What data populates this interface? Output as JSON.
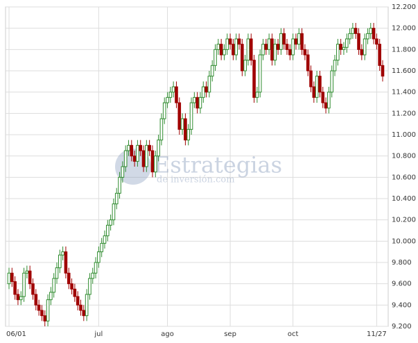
{
  "chart_data": {
    "type": "candlestick",
    "watermark": {
      "title": "Estrategias",
      "subtitle": "de inversión.com"
    },
    "categories": [
      "06/01",
      null,
      null,
      null,
      null,
      null,
      null,
      null,
      null,
      null,
      null,
      null,
      null,
      null,
      null,
      null,
      null,
      null,
      null,
      null,
      null,
      null,
      null,
      null,
      null,
      null,
      null,
      null,
      null,
      null,
      "jul",
      null,
      null,
      null,
      null,
      null,
      null,
      null,
      null,
      null,
      null,
      null,
      null,
      null,
      null,
      null,
      null,
      null,
      null,
      null,
      null,
      null,
      null,
      "ago",
      null,
      null,
      null,
      null,
      null,
      null,
      null,
      null,
      null,
      null,
      null,
      null,
      null,
      null,
      null,
      null,
      null,
      null,
      null,
      null,
      "sep",
      null,
      null,
      null,
      null,
      null,
      null,
      null,
      null,
      null,
      null,
      null,
      null,
      null,
      null,
      null,
      null,
      null,
      null,
      null,
      null,
      "oct",
      null,
      null,
      null,
      null,
      null,
      null,
      null,
      null,
      null,
      null,
      null,
      null,
      null,
      null,
      null,
      null,
      null,
      null,
      null,
      null,
      null,
      null,
      null,
      null,
      null,
      null,
      null,
      "11/27",
      null,
      null
    ],
    "open": [
      9600,
      9700,
      9620,
      9500,
      9450,
      9480,
      9700,
      9720,
      9600,
      9500,
      9400,
      9350,
      9300,
      9250,
      9450,
      9520,
      9650,
      9750,
      9870,
      9900,
      9700,
      9600,
      9550,
      9480,
      9400,
      9350,
      9300,
      9500,
      9650,
      9700,
      9800,
      9900,
      9980,
      10050,
      10150,
      10200,
      10350,
      10450,
      10600,
      10700,
      10850,
      10900,
      10800,
      10750,
      10900,
      10850,
      10700,
      10900,
      10850,
      10650,
      10800,
      10950,
      11150,
      11300,
      11350,
      11400,
      11450,
      11300,
      11050,
      11150,
      10950,
      11050,
      11300,
      11350,
      11250,
      11350,
      11450,
      11400,
      11550,
      11650,
      11800,
      11850,
      11750,
      11800,
      11900,
      11850,
      11750,
      11900,
      11850,
      11600,
      11700,
      11900,
      11700,
      11350,
      11400,
      11750,
      11850,
      11800,
      11900,
      11700,
      11850,
      11800,
      11950,
      11850,
      11800,
      11750,
      11900,
      11850,
      11950,
      11800,
      11750,
      11600,
      11450,
      11350,
      11550,
      11400,
      11300,
      11250,
      11400,
      11600,
      11700,
      11850,
      11800,
      11820,
      11900,
      11950,
      12000,
      11950,
      11800,
      11750,
      11900,
      11950,
      12000,
      11900,
      11850,
      11650
    ],
    "high": [
      9750,
      9750,
      9670,
      9550,
      9530,
      9750,
      9770,
      9770,
      9650,
      9550,
      9450,
      9400,
      9350,
      9500,
      9570,
      9700,
      9800,
      9920,
      9950,
      9950,
      9750,
      9650,
      9600,
      9530,
      9450,
      9400,
      9550,
      9700,
      9750,
      9850,
      9950,
      10030,
      10100,
      10200,
      10250,
      10400,
      10500,
      10650,
      10750,
      10900,
      10950,
      10950,
      10850,
      10950,
      10950,
      10900,
      10950,
      10950,
      10900,
      10850,
      11000,
      11200,
      11350,
      11400,
      11450,
      11500,
      11500,
      11350,
      11200,
      11200,
      11100,
      11350,
      11400,
      11400,
      11400,
      11500,
      11500,
      11600,
      11700,
      11850,
      11900,
      11900,
      11850,
      11950,
      11950,
      11900,
      11950,
      11950,
      11900,
      11750,
      11950,
      11950,
      11750,
      11450,
      11800,
      11900,
      11900,
      11950,
      11950,
      11900,
      11900,
      12000,
      12000,
      11900,
      11850,
      11950,
      11950,
      12000,
      12000,
      11850,
      11800,
      11650,
      11500,
      11600,
      11600,
      11450,
      11350,
      11450,
      11650,
      11750,
      11900,
      11900,
      11870,
      11950,
      12000,
      12050,
      12050,
      12000,
      11850,
      11950,
      12000,
      12050,
      12050,
      11950,
      11900,
      11700
    ],
    "low": [
      9550,
      9570,
      9450,
      9400,
      9400,
      9430,
      9650,
      9550,
      9450,
      9350,
      9300,
      9250,
      9200,
      9200,
      9400,
      9470,
      9600,
      9700,
      9820,
      9650,
      9550,
      9500,
      9430,
      9350,
      9300,
      9250,
      9250,
      9450,
      9600,
      9650,
      9750,
      9850,
      9930,
      10000,
      10100,
      10150,
      10300,
      10400,
      10550,
      10650,
      10800,
      10750,
      10700,
      10700,
      10800,
      10650,
      10650,
      10800,
      10600,
      10600,
      10750,
      10900,
      11100,
      11250,
      11300,
      11350,
      11250,
      11000,
      11000,
      10900,
      10900,
      11000,
      11250,
      11200,
      11200,
      11300,
      11350,
      11350,
      11500,
      11600,
      11750,
      11700,
      11700,
      11750,
      11800,
      11700,
      11700,
      11800,
      11550,
      11550,
      11650,
      11650,
      11300,
      11300,
      11350,
      11700,
      11750,
      11750,
      11650,
      11650,
      11750,
      11750,
      11800,
      11750,
      11700,
      11700,
      11800,
      11800,
      11750,
      11700,
      11550,
      11400,
      11300,
      11300,
      11350,
      11250,
      11200,
      11200,
      11350,
      11550,
      11650,
      11750,
      11750,
      11770,
      11850,
      11900,
      11900,
      11750,
      11700,
      11700,
      11850,
      11900,
      11850,
      11800,
      11600,
      11500
    ],
    "close": [
      9700,
      9620,
      9500,
      9450,
      9480,
      9700,
      9720,
      9600,
      9500,
      9400,
      9350,
      9300,
      9250,
      9450,
      9520,
      9650,
      9750,
      9870,
      9900,
      9700,
      9600,
      9550,
      9480,
      9400,
      9350,
      9300,
      9500,
      9650,
      9700,
      9800,
      9900,
      9980,
      10050,
      10150,
      10200,
      10350,
      10450,
      10600,
      10700,
      10850,
      10900,
      10800,
      10750,
      10900,
      10850,
      10700,
      10900,
      10850,
      10650,
      10800,
      10950,
      11150,
      11300,
      11350,
      11400,
      11450,
      11300,
      11050,
      11150,
      10950,
      11050,
      11300,
      11350,
      11250,
      11350,
      11450,
      11400,
      11550,
      11650,
      11800,
      11850,
      11750,
      11800,
      11900,
      11850,
      11750,
      11900,
      11850,
      11600,
      11700,
      11900,
      11700,
      11350,
      11400,
      11750,
      11850,
      11800,
      11900,
      11700,
      11850,
      11800,
      11950,
      11850,
      11800,
      11750,
      11900,
      11850,
      11950,
      11800,
      11750,
      11600,
      11450,
      11350,
      11550,
      11400,
      11300,
      11250,
      11400,
      11600,
      11700,
      11850,
      11800,
      11820,
      11900,
      11950,
      12000,
      11950,
      11800,
      11750,
      11900,
      11950,
      12000,
      11900,
      11850,
      11650,
      11550
    ],
    "up_color": "#2e8b2e",
    "down_color": "#a00000",
    "ylim": [
      9200,
      12200
    ],
    "yticks": [
      {
        "value": 9200,
        "label": "9.200"
      },
      {
        "value": 9400,
        "label": "9.400"
      },
      {
        "value": 9600,
        "label": "9.600"
      },
      {
        "value": 9800,
        "label": "9.800"
      },
      {
        "value": 10000,
        "label": "10.000"
      },
      {
        "value": 10200,
        "label": "10.200"
      },
      {
        "value": 10400,
        "label": "10.400"
      },
      {
        "value": 10600,
        "label": "10.600"
      },
      {
        "value": 10800,
        "label": "10.800"
      },
      {
        "value": 11000,
        "label": "11.000"
      },
      {
        "value": 11200,
        "label": "11.200"
      },
      {
        "value": 11400,
        "label": "11.400"
      },
      {
        "value": 11600,
        "label": "11.600"
      },
      {
        "value": 11800,
        "label": "11.800"
      },
      {
        "value": 12000,
        "label": "12.000"
      },
      {
        "value": 12200,
        "label": "12.200"
      }
    ],
    "grid": true
  }
}
